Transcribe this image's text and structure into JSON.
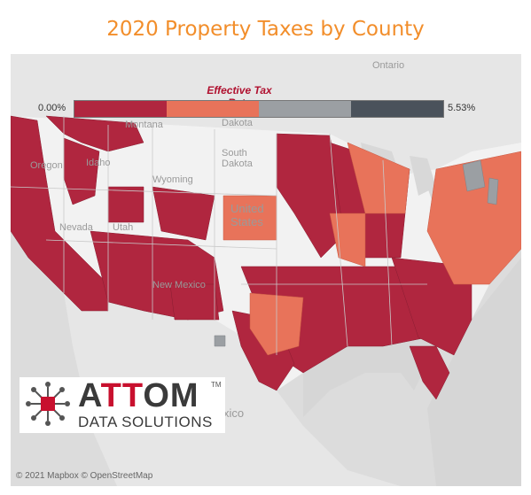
{
  "title": "2020 Property Taxes by County",
  "legend": {
    "title": "Effective Tax Rate",
    "min_label": "0.00%",
    "max_label": "5.53%",
    "colors": [
      "#b0263f",
      "#e8735a",
      "#9b9fa3",
      "#4a525b"
    ]
  },
  "map_labels": {
    "ontario": "Ontario",
    "montana": "Montana",
    "north_dakota": "Dakota",
    "south_dakota": "South\nDakota",
    "oregon": "Oregon",
    "idaho": "Idaho",
    "wyoming": "Wyoming",
    "nevada": "Nevada",
    "utah": "Utah",
    "united_states": "United\nStates",
    "new_mexico": "New Mexico",
    "mexico": "xico"
  },
  "logo": {
    "brand_a": "A",
    "brand_tt": "TT",
    "brand_om": "OM",
    "trademark": "TM",
    "tagline": "DATA SOLUTIONS"
  },
  "credit": "© 2021 Mapbox © OpenStreetMap"
}
